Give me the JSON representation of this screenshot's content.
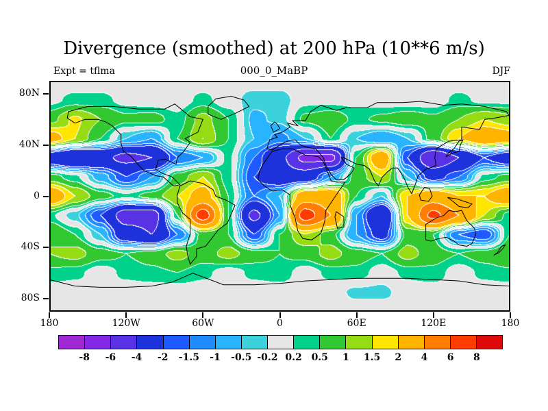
{
  "title": "Divergence (smoothed) at 200 hPa (10**6 m/s)",
  "header": {
    "left": "Expt = tflma",
    "center": "000_0_MaBP",
    "right": "DJF"
  },
  "axes": {
    "lat_ticks": [
      {
        "label": "80N",
        "lat": 80
      },
      {
        "label": "40N",
        "lat": 40
      },
      {
        "label": "0",
        "lat": 0
      },
      {
        "label": "40S",
        "lat": -40
      },
      {
        "label": "80S",
        "lat": -80
      }
    ],
    "lon_ticks": [
      {
        "label": "180",
        "lon": -180
      },
      {
        "label": "120W",
        "lon": -120
      },
      {
        "label": "60W",
        "lon": -60
      },
      {
        "label": "0",
        "lon": 0
      },
      {
        "label": "60E",
        "lon": 60
      },
      {
        "label": "120E",
        "lon": 120
      },
      {
        "label": "180",
        "lon": 180
      }
    ]
  },
  "colorbar": {
    "labels": [
      "-8",
      "-6",
      "-4",
      "-2",
      "-1.5",
      "-1",
      "-0.5",
      "-0.2",
      "0.2",
      "0.5",
      "1",
      "1.5",
      "2",
      "4",
      "6",
      "8"
    ]
  },
  "chart_data": {
    "type": "heatmap",
    "title": "Divergence (smoothed) at 200 hPa (10**6 m/s)",
    "season": "DJF",
    "x_range": [
      -180,
      180
    ],
    "y_range": [
      -90,
      90
    ],
    "levels": [
      -8,
      -6,
      -4,
      -2,
      -1.5,
      -1,
      -0.5,
      -0.2,
      0.2,
      0.5,
      1,
      1.5,
      2,
      4,
      6,
      8
    ],
    "palette": [
      "#a028d2",
      "#8228e6",
      "#5a32e6",
      "#1e32dc",
      "#1e5aff",
      "#1e8cff",
      "#28b4ff",
      "#3cd2dc",
      "#e6e6e6",
      "#00d28c",
      "#32c832",
      "#96dc14",
      "#ffe600",
      "#ffb400",
      "#ff7d00",
      "#ff3c00",
      "#dc0a0a"
    ],
    "x": [
      -180,
      -160,
      -140,
      -120,
      -100,
      -80,
      -60,
      -40,
      -20,
      0,
      20,
      40,
      60,
      80,
      100,
      120,
      140,
      160,
      180
    ],
    "y": [
      90,
      75,
      60,
      45,
      30,
      15,
      0,
      -15,
      -30,
      -45,
      -60,
      -75,
      -90
    ],
    "values": [
      [
        0,
        0,
        0,
        0,
        0,
        0,
        0,
        0,
        0,
        0,
        0,
        0,
        0,
        0,
        0,
        0,
        0,
        0,
        0
      ],
      [
        0.1,
        0.3,
        0.3,
        0.1,
        0,
        0,
        0.3,
        0,
        -0.4,
        -0.4,
        0.1,
        0.1,
        0.1,
        0,
        0,
        0,
        0.3,
        0.1,
        0.1
      ],
      [
        0.8,
        1.6,
        1.0,
        0.6,
        0.7,
        0.3,
        1.2,
        0.5,
        -0.6,
        -0.4,
        0.6,
        0.8,
        0.4,
        0.6,
        0.8,
        0.6,
        1.0,
        1.5,
        1.2
      ],
      [
        2.5,
        1.5,
        0.5,
        -0.5,
        -1.0,
        0.5,
        1.5,
        0.5,
        -0.5,
        -1.2,
        -0.5,
        0.5,
        -0.5,
        -1.0,
        -0.5,
        0.7,
        2.0,
        3.0,
        2.5
      ],
      [
        -3,
        -4,
        -3.5,
        -4.5,
        -4,
        -1.5,
        -1,
        0.3,
        -1.5,
        -3.5,
        -6.5,
        -6.5,
        0.5,
        3,
        -2,
        -6,
        -4,
        -2,
        -3
      ],
      [
        0.7,
        0.3,
        -0.7,
        -2,
        -1,
        0.7,
        1.5,
        0.3,
        -2,
        -3,
        -3,
        -1,
        0.7,
        1.5,
        -0.5,
        -2.5,
        -1.5,
        0.3,
        0.7
      ],
      [
        3,
        1.5,
        0.7,
        0.3,
        0.7,
        1.5,
        2.5,
        0.5,
        -1.5,
        -0.5,
        3,
        3,
        0.5,
        -0.5,
        2,
        3,
        2,
        2,
        3
      ],
      [
        0.3,
        -0.4,
        -2,
        -5,
        -5,
        0.5,
        7,
        0.5,
        -4.5,
        -1,
        7,
        4,
        -1,
        -4,
        2,
        6.5,
        4,
        1.5,
        0.3
      ],
      [
        1,
        0.5,
        -0.5,
        -3,
        -4,
        -1.5,
        0.7,
        0.5,
        -2,
        0.5,
        1.5,
        0.7,
        -1,
        -2.5,
        0.7,
        0.5,
        -1.5,
        -2,
        0.5
      ],
      [
        1,
        1.2,
        0.7,
        0.5,
        0.7,
        1.2,
        0.7,
        1.2,
        0.7,
        0.5,
        0.7,
        1.2,
        0.7,
        0.5,
        1.2,
        0.7,
        0.5,
        0.7,
        1
      ],
      [
        0.4,
        0.3,
        0,
        0.3,
        0.4,
        0.5,
        0.3,
        0,
        0.3,
        0.4,
        0,
        0.3,
        0.4,
        0,
        0.3,
        0.4,
        0,
        0.3,
        0.4
      ],
      [
        0,
        0,
        0,
        0,
        0,
        0,
        0,
        0,
        0,
        0,
        0,
        0,
        -0.3,
        -0.3,
        0,
        0,
        0,
        0,
        0
      ],
      [
        0,
        0,
        0,
        0,
        0,
        0,
        0,
        0,
        0,
        0,
        0,
        0,
        0,
        0,
        0,
        0,
        0,
        0,
        0
      ]
    ]
  }
}
